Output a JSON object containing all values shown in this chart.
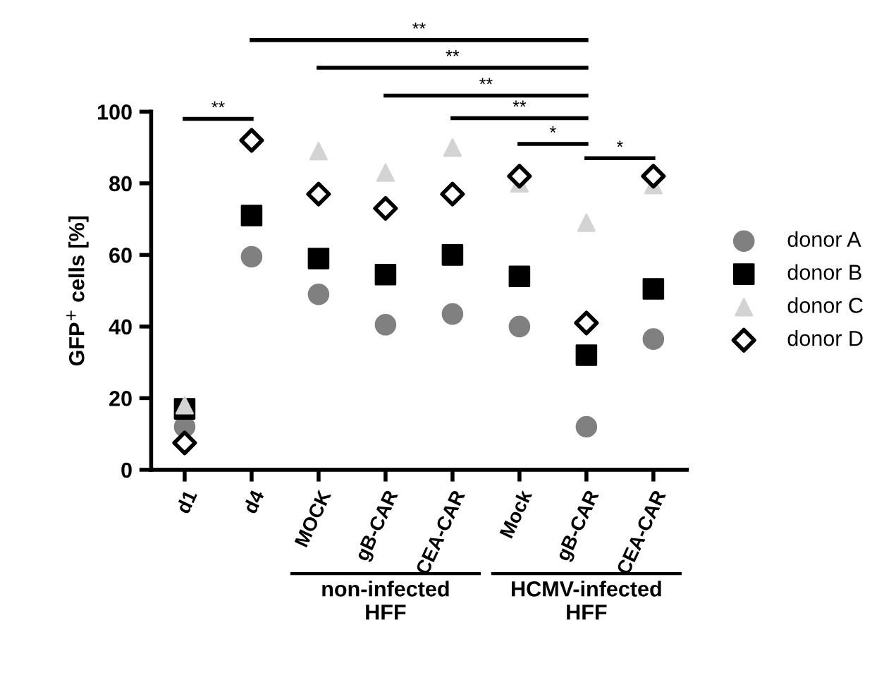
{
  "chart_data": {
    "type": "scatter",
    "ylabel": "GFP$^{+}$ cells [%]",
    "categories": [
      "d1",
      "d4",
      "MOCK",
      "gB-CAR",
      "CEA-CAR",
      "Mock",
      "gB-CAR",
      "CEA-CAR"
    ],
    "series": [
      {
        "name": "donor A",
        "color": "#808080",
        "marker": "circle",
        "values": [
          12,
          59.5,
          49,
          40.5,
          43.5,
          40,
          12,
          36.5
        ]
      },
      {
        "name": "donor B",
        "color": "#000000",
        "marker": "square",
        "values": [
          17,
          71,
          59,
          54.5,
          60,
          54,
          32,
          50.5
        ]
      },
      {
        "name": "donor C",
        "color": "#d3d3d3",
        "marker": "triangle",
        "values": [
          18,
          null,
          89,
          83,
          90,
          80,
          69,
          79.5
        ]
      },
      {
        "name": "donor D",
        "color": "#000000",
        "marker": "diamond",
        "values": [
          7.5,
          92,
          77,
          73,
          77,
          82,
          41,
          82
        ]
      }
    ],
    "ylim": [
      0,
      100
    ],
    "yticks": [
      0,
      20,
      40,
      60,
      80,
      100
    ],
    "grid": false,
    "legend": "right",
    "annotations": [
      "**",
      "**",
      "**",
      "**",
      "**",
      "*",
      "*",
      "non-infected\nHFF",
      "HCMV-infected\nHFF"
    ]
  }
}
